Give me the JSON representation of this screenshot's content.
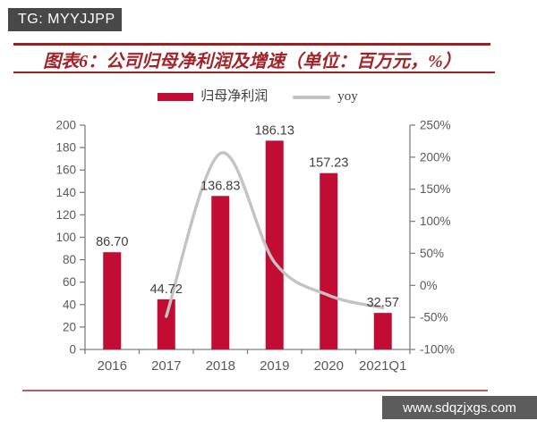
{
  "badge": {
    "text": "TG: MYYJJPP"
  },
  "figure": {
    "title": "图表6：公司归母净利润及增速（单位：百万元，%）",
    "title_color": "#a32328",
    "rule_color": "#9c1f22",
    "bottom_rule_color": "#9c4a46"
  },
  "legend": {
    "items": [
      {
        "label": "归母净利润",
        "swatch": "bar-swatch",
        "color": "#c20c33"
      },
      {
        "label": "yoy",
        "swatch": "line-swatch",
        "color": "#c3c3c3"
      }
    ]
  },
  "chart_data": {
    "type": "bar",
    "title": "公司归母净利润及增速",
    "categories": [
      "2016",
      "2017",
      "2018",
      "2019",
      "2020",
      "2021Q1"
    ],
    "series": [
      {
        "name": "归母净利润",
        "type": "bar",
        "axis": "left",
        "color": "#c20c33",
        "values": [
          86.7,
          44.72,
          136.83,
          186.13,
          157.23,
          32.57
        ],
        "labels": [
          "86.70",
          "44.72",
          "136.83",
          "186.13",
          "157.23",
          "32.57"
        ]
      },
      {
        "name": "yoy",
        "type": "line",
        "axis": "right",
        "color": "#c3c3c3",
        "values": [
          null,
          -48.4,
          206.0,
          36.0,
          -15.5,
          -35.0
        ]
      }
    ],
    "left_axis": {
      "min": 0,
      "max": 200,
      "step": 20,
      "ticks": [
        "0",
        "20",
        "40",
        "60",
        "80",
        "100",
        "120",
        "140",
        "160",
        "180",
        "200"
      ]
    },
    "right_axis": {
      "min": -100,
      "max": 250,
      "step": 50,
      "ticks": [
        "-100%",
        "-50%",
        "0%",
        "50%",
        "100%",
        "150%",
        "200%",
        "250%"
      ]
    },
    "grid": false,
    "legend_position": "top",
    "line_smooth": true
  },
  "watermark": {
    "text": "www.sdqzjxgs.com"
  }
}
